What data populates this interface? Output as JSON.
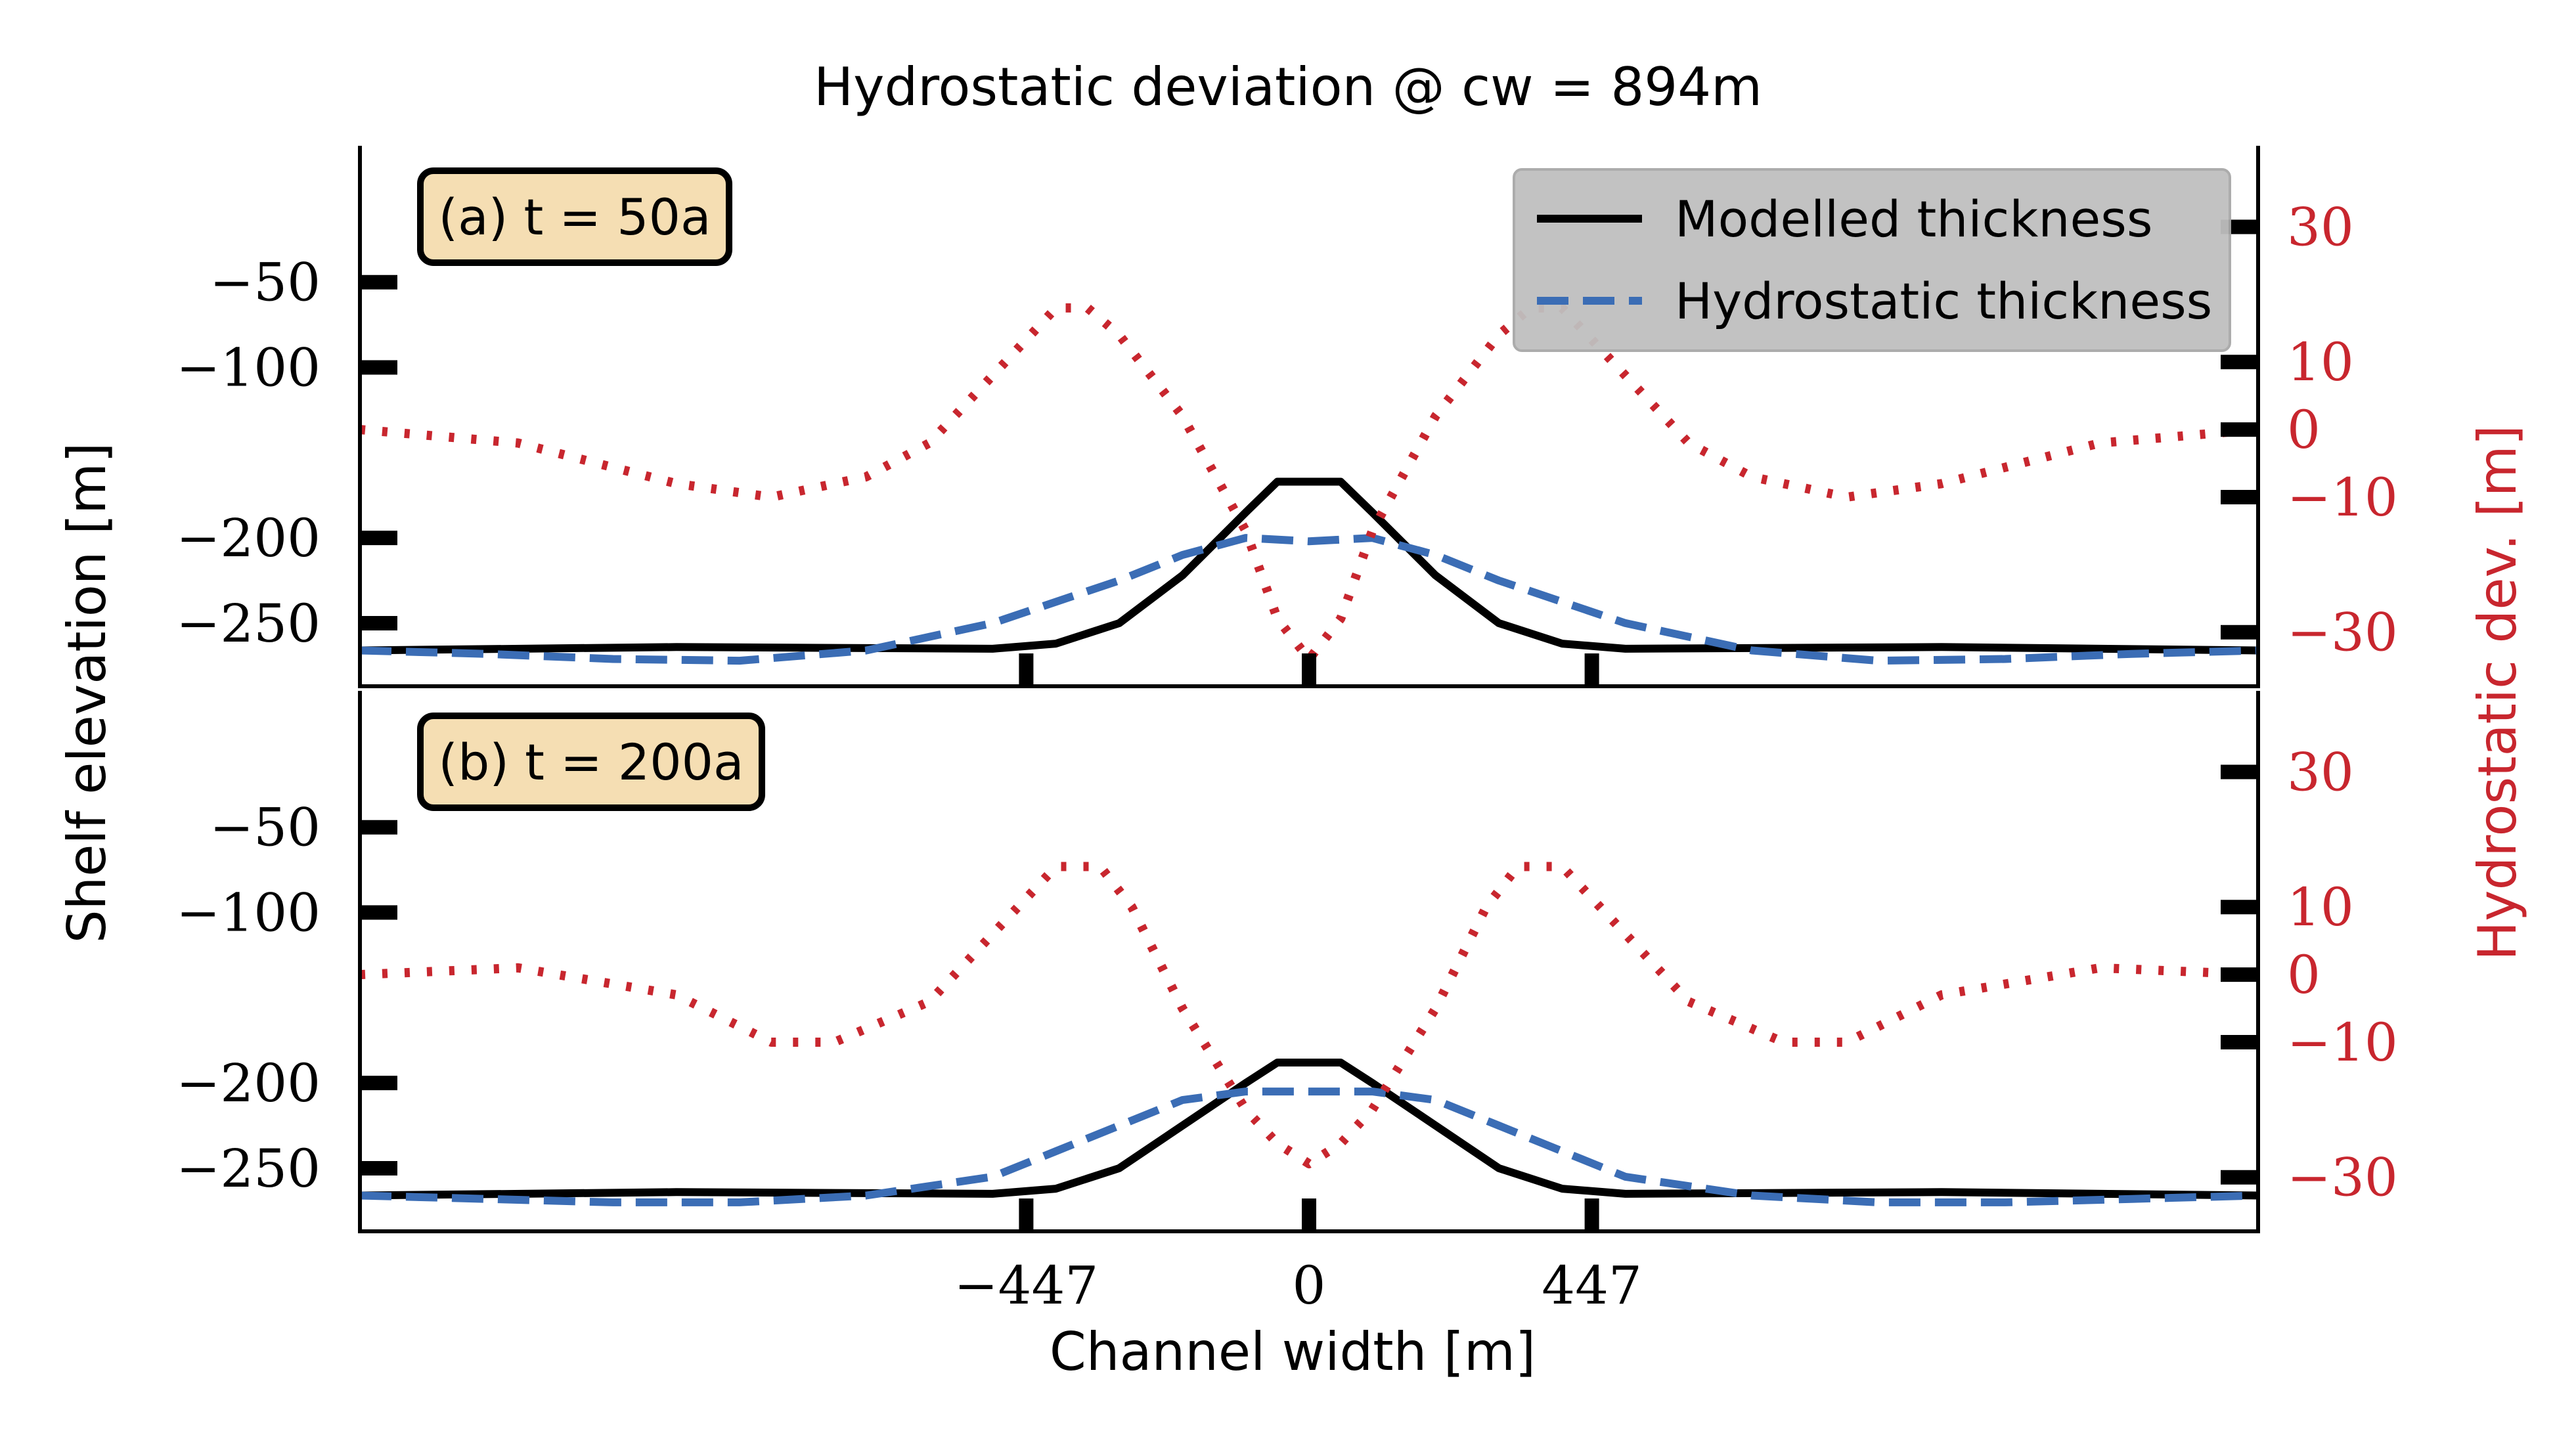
{
  "title": "Hydrostatic deviation @ cw = 894m",
  "xlabel": "Channel width [m]",
  "ylabel_left": "Shelf elevation [m]",
  "ylabel_right": "Hydrostatic dev. [m]",
  "colors": {
    "modelled": "#000000",
    "hydrostatic": "#3b6db5",
    "deviation": "#c8262e",
    "panel_label_bg": "#f5deb3",
    "legend_bg": "#bfbfbf"
  },
  "legend": {
    "placement": "top-right",
    "entries": [
      "Modelled thickness",
      "Hydrostatic thickness"
    ]
  },
  "chart_data": [
    {
      "type": "line",
      "panel_label": "(a) t = 50a",
      "xlim": [
        -1500,
        1500
      ],
      "ylim_left": [
        -287,
        30
      ],
      "ylim_right": [
        -38,
        42
      ],
      "x_ticks": [
        "−447",
        "0",
        "447"
      ],
      "x_tick_values": [
        -447,
        0,
        447
      ],
      "left_ticks": [
        "−50",
        "−100",
        "−200",
        "−250"
      ],
      "left_tick_values": [
        -50,
        -100,
        -200,
        -250
      ],
      "right_ticks": [
        "30",
        "10",
        "0",
        "−10",
        "−30"
      ],
      "right_tick_values": [
        30,
        10,
        0,
        -10,
        -30
      ],
      "series": [
        {
          "name": "Modelled thickness",
          "axis": "left",
          "style": "solid",
          "x": [
            -1500,
            -1000,
            -500,
            -400,
            -300,
            -200,
            -100,
            -50,
            0,
            50,
            100,
            200,
            300,
            400,
            500,
            1000,
            1500
          ],
          "y": [
            -266,
            -264,
            -265,
            -262,
            -250,
            -222,
            -185,
            -167,
            -167,
            -167,
            -185,
            -222,
            -250,
            -262,
            -265,
            -264,
            -266
          ]
        },
        {
          "name": "Hydrostatic thickness",
          "axis": "left",
          "style": "dashed",
          "x": [
            -1500,
            -1300,
            -1100,
            -900,
            -700,
            -500,
            -300,
            -200,
            -100,
            0,
            100,
            200,
            300,
            500,
            700,
            900,
            1100,
            1300,
            1500
          ],
          "y": [
            -266,
            -268,
            -271,
            -272,
            -266,
            -250,
            -225,
            -210,
            -200,
            -202,
            -200,
            -210,
            -225,
            -250,
            -266,
            -272,
            -271,
            -268,
            -266
          ]
        },
        {
          "axis": "right",
          "style": "dotted",
          "x": [
            -1500,
            -1250,
            -1000,
            -850,
            -700,
            -600,
            -500,
            -400,
            -350,
            -300,
            -200,
            -100,
            -50,
            0,
            50,
            100,
            200,
            300,
            350,
            400,
            500,
            600,
            700,
            850,
            1000,
            1250,
            1500
          ],
          "y": [
            0,
            -2,
            -8,
            -10,
            -7,
            -2,
            8,
            18,
            18,
            14,
            2,
            -15,
            -28,
            -34,
            -28,
            -15,
            2,
            14,
            18,
            18,
            8,
            -2,
            -7,
            -10,
            -8,
            -2,
            0
          ]
        }
      ]
    },
    {
      "type": "line",
      "panel_label": "(b) t = 200a",
      "xlim": [
        -1500,
        1500
      ],
      "ylim_left": [
        -287,
        30
      ],
      "ylim_right": [
        -38,
        42
      ],
      "x_ticks": [
        "−447",
        "0",
        "447"
      ],
      "x_tick_values": [
        -447,
        0,
        447
      ],
      "left_ticks": [
        "−50",
        "−100",
        "−200",
        "−250"
      ],
      "left_tick_values": [
        -50,
        -100,
        -200,
        -250
      ],
      "right_ticks": [
        "30",
        "10",
        "0",
        "−10",
        "−30"
      ],
      "right_tick_values": [
        30,
        10,
        0,
        -10,
        -30
      ],
      "series": [
        {
          "name": "Modelled thickness",
          "axis": "left",
          "style": "solid",
          "x": [
            -1500,
            -1000,
            -500,
            -400,
            -300,
            -200,
            -100,
            -50,
            0,
            50,
            100,
            200,
            300,
            400,
            500,
            1000,
            1500
          ],
          "y": [
            -266,
            -264,
            -265,
            -262,
            -250,
            -225,
            -200,
            -188,
            -188,
            -188,
            -200,
            -225,
            -250,
            -262,
            -265,
            -264,
            -266
          ]
        },
        {
          "name": "Hydrostatic thickness",
          "axis": "left",
          "style": "dashed",
          "x": [
            -1500,
            -1300,
            -1100,
            -900,
            -700,
            -500,
            -400,
            -300,
            -200,
            -100,
            0,
            100,
            200,
            300,
            400,
            500,
            700,
            900,
            1100,
            1300,
            1500
          ],
          "y": [
            -266,
            -268,
            -270,
            -270,
            -266,
            -255,
            -240,
            -225,
            -210,
            -205,
            -205,
            -205,
            -210,
            -225,
            -240,
            -255,
            -266,
            -270,
            -270,
            -268,
            -266
          ]
        },
        {
          "axis": "right",
          "style": "dotted",
          "x": [
            -1500,
            -1250,
            -1000,
            -850,
            -750,
            -600,
            -500,
            -400,
            -330,
            -280,
            -200,
            -100,
            -50,
            0,
            50,
            100,
            200,
            280,
            330,
            400,
            500,
            600,
            750,
            850,
            1000,
            1250,
            1500
          ],
          "y": [
            0,
            1,
            -3,
            -10,
            -10,
            -4,
            6,
            16,
            16,
            10,
            -5,
            -20,
            -25,
            -28,
            -25,
            -20,
            -5,
            10,
            16,
            16,
            6,
            -4,
            -10,
            -10,
            -3,
            1,
            0
          ]
        }
      ]
    }
  ]
}
